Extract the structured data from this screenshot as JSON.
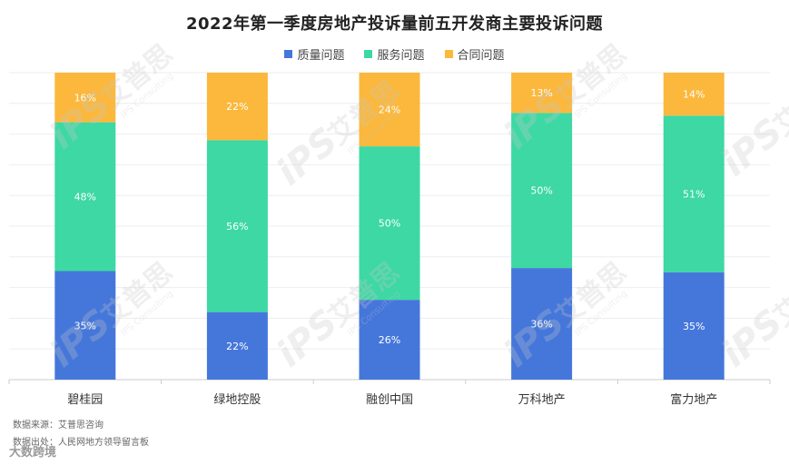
{
  "chart_data": {
    "type": "bar",
    "stacked": true,
    "title": "2022年第一季度房地产投诉量前五开发商主要投诉问题",
    "categories": [
      "碧桂园",
      "绿地控股",
      "融创中国",
      "万科地产",
      "富力地产"
    ],
    "series": [
      {
        "name": "质量问题",
        "color": "#4577DB",
        "values": [
          35,
          22,
          26,
          36,
          35
        ]
      },
      {
        "name": "服务问题",
        "color": "#3DD8A4",
        "values": [
          48,
          56,
          50,
          50,
          51
        ]
      },
      {
        "name": "合同问题",
        "color": "#FBB83C",
        "values": [
          16,
          22,
          24,
          13,
          14
        ]
      }
    ],
    "value_suffix": "%",
    "legend_position": "top-center",
    "grid": true,
    "xlabel": "",
    "ylabel": ""
  },
  "footer": {
    "source": "数据来源：艾普思咨询",
    "origin": "数据出处：人民网地方领导留言板"
  },
  "watermark": {
    "brand_cn": "艾普思",
    "brand_en": "IPS Consulting",
    "brand_mark": "iPS"
  },
  "bottom_brand": "大数跨境"
}
